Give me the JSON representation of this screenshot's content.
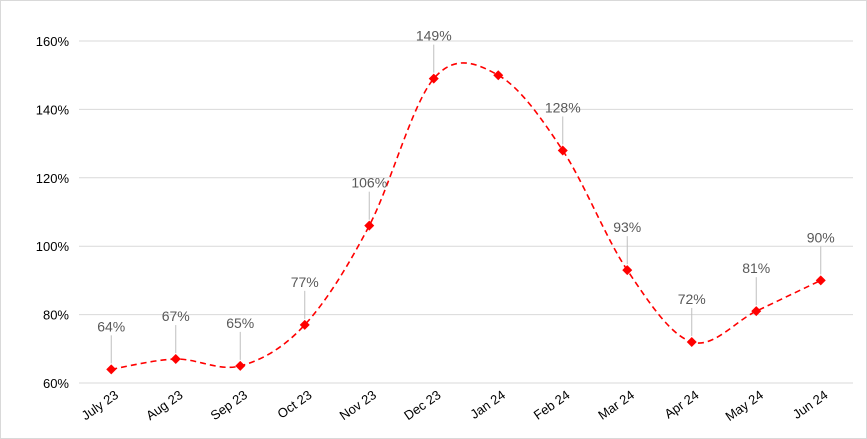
{
  "colors": {
    "series": "#ff0000",
    "grid": "#d9d9d9",
    "label": "#595959",
    "axis_text": "#000000"
  },
  "chart_data": {
    "type": "line",
    "title": "",
    "xlabel": "",
    "ylabel": "",
    "categories": [
      "July 23",
      "Aug 23",
      "Sep 23",
      "Oct 23",
      "Nov 23",
      "Dec 23",
      "Jan 24",
      "Feb 24",
      "Mar 24",
      "Apr 24",
      "May 24",
      "Jun 24"
    ],
    "series": [
      {
        "values": [
          64,
          67,
          65,
          77,
          106,
          149,
          150,
          128,
          93,
          72,
          81,
          90
        ],
        "data_labels": [
          "64%",
          "67%",
          "65%",
          "77%",
          "106%",
          "149%",
          "",
          "128%",
          "93%",
          "72%",
          "81%",
          "90%"
        ],
        "line_style": "dashed",
        "smooth": true,
        "marker": "diamond"
      }
    ],
    "ylim": [
      60,
      160
    ],
    "yticks": [
      60,
      80,
      100,
      120,
      140,
      160
    ],
    "ytick_labels": [
      "60%",
      "80%",
      "100%",
      "120%",
      "140%",
      "160%"
    ],
    "grid": true,
    "legend": "none"
  }
}
